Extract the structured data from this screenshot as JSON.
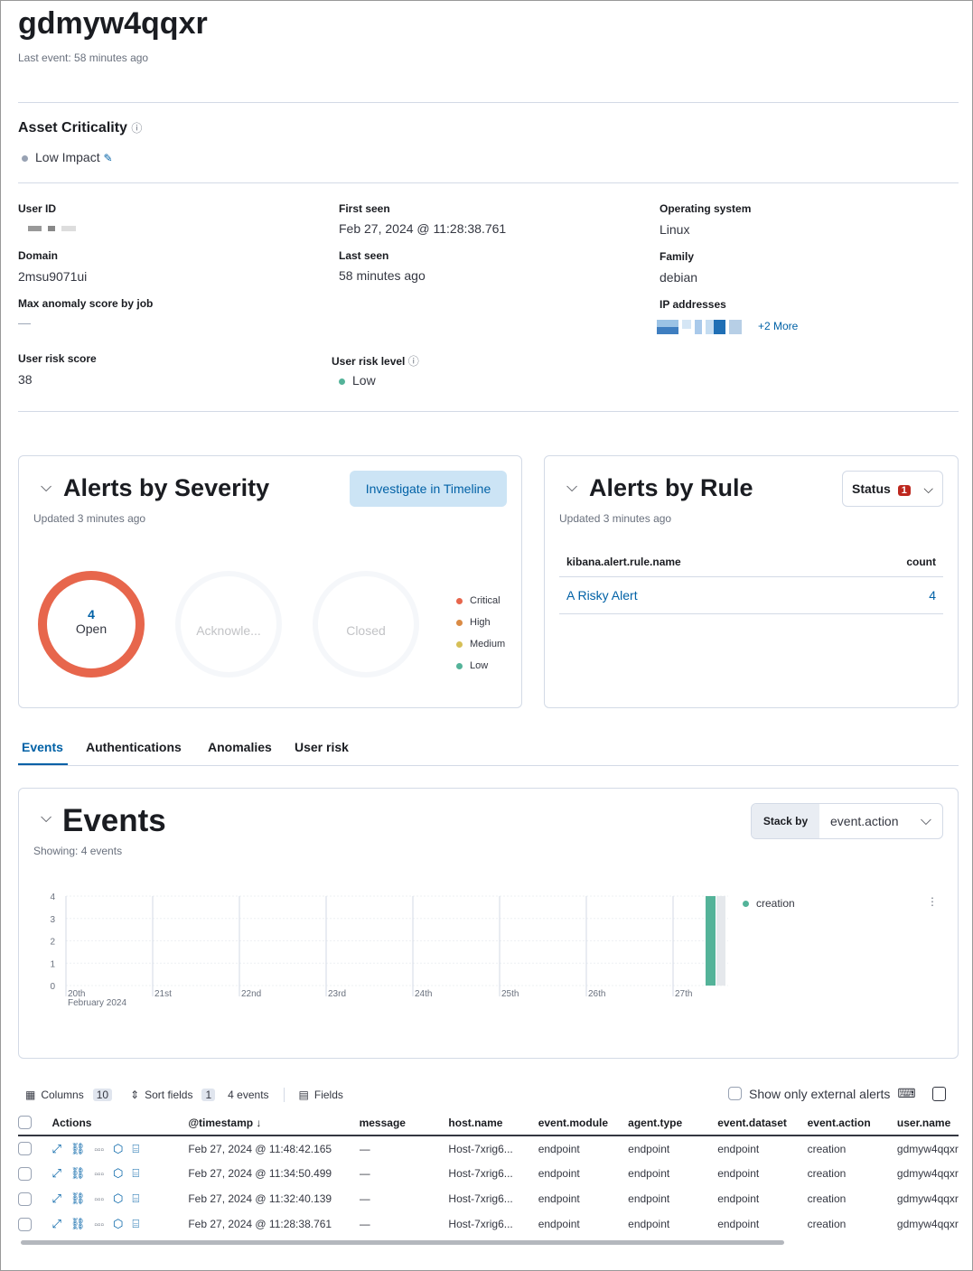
{
  "header": {
    "title": "gdmyw4qqxr",
    "last_event": "Last event: 58 minutes ago"
  },
  "asset": {
    "title": "Asset Criticality",
    "value": "Low Impact"
  },
  "details": {
    "user_id_label": "User ID",
    "first_seen_label": "First seen",
    "first_seen": "Feb 27, 2024 @ 11:28:38.761",
    "os_label": "Operating system",
    "os": "Linux",
    "domain_label": "Domain",
    "domain": "2msu9071ui",
    "last_seen_label": "Last seen",
    "last_seen": "58 minutes ago",
    "family_label": "Family",
    "family": "debian",
    "anomaly_label": "Max anomaly score by job",
    "anomaly": "—",
    "ip_label": "IP addresses",
    "ip_more": "+2 More",
    "risk_score_label": "User risk score",
    "risk_score": "38",
    "risk_level_label": "User risk level",
    "risk_level": "Low"
  },
  "severity": {
    "title": "Alerts by Severity",
    "updated": "Updated 3 minutes ago",
    "investigate": "Investigate in Timeline",
    "open_count": "4",
    "open": "Open",
    "ack": "Acknowle...",
    "closed": "Closed",
    "legend": [
      {
        "label": "Critical",
        "color": "#e7664c"
      },
      {
        "label": "High",
        "color": "#da8b45"
      },
      {
        "label": "Medium",
        "color": "#d6bf57"
      },
      {
        "label": "Low",
        "color": "#54b399"
      }
    ]
  },
  "by_rule": {
    "title": "Alerts by Rule",
    "updated": "Updated 3 minutes ago",
    "status": "Status",
    "status_count": "1",
    "col_name": "kibana.alert.rule.name",
    "col_count": "count",
    "rows": [
      {
        "name": "A Risky Alert",
        "count": "4"
      }
    ]
  },
  "tabs": [
    {
      "label": "Events",
      "active": true
    },
    {
      "label": "Authentications"
    },
    {
      "label": "Anomalies"
    },
    {
      "label": "User risk"
    }
  ],
  "events": {
    "title": "Events",
    "showing": "Showing: 4 events",
    "stack_by": "Stack by",
    "stack_value": "event.action"
  },
  "chart_data": {
    "type": "bar",
    "x_ticks": [
      "20th",
      "21st",
      "22nd",
      "23rd",
      "24th",
      "25th",
      "26th",
      "27th"
    ],
    "x_sublabel": "February 2024",
    "y_ticks": [
      "0",
      "1",
      "2",
      "3",
      "4"
    ],
    "ylim": [
      0,
      4
    ],
    "series": [
      {
        "name": "creation",
        "color": "#54b399",
        "values": [
          {
            "x": "Feb 27, 2024",
            "y": 4
          }
        ]
      }
    ],
    "legend": "right"
  },
  "toolbar": {
    "columns": "Columns",
    "columns_count": "10",
    "sort": "Sort fields",
    "sort_count": "1",
    "events_count": "4 events",
    "fields": "Fields",
    "external": "Show only external alerts"
  },
  "table": {
    "headers": [
      "Actions",
      "@timestamp",
      "message",
      "host.name",
      "event.module",
      "agent.type",
      "event.dataset",
      "event.action",
      "user.name"
    ],
    "rows": [
      [
        "Feb 27, 2024 @ 11:48:42.165",
        "—",
        "Host-7xrig6...",
        "endpoint",
        "endpoint",
        "endpoint",
        "creation",
        "gdmyw4qqxr"
      ],
      [
        "Feb 27, 2024 @ 11:34:50.499",
        "—",
        "Host-7xrig6...",
        "endpoint",
        "endpoint",
        "endpoint",
        "creation",
        "gdmyw4qqxr"
      ],
      [
        "Feb 27, 2024 @ 11:32:40.139",
        "—",
        "Host-7xrig6...",
        "endpoint",
        "endpoint",
        "endpoint",
        "creation",
        "gdmyw4qqxr"
      ],
      [
        "Feb 27, 2024 @ 11:28:38.761",
        "—",
        "Host-7xrig6...",
        "endpoint",
        "endpoint",
        "endpoint",
        "creation",
        "gdmyw4qqxr"
      ]
    ]
  }
}
